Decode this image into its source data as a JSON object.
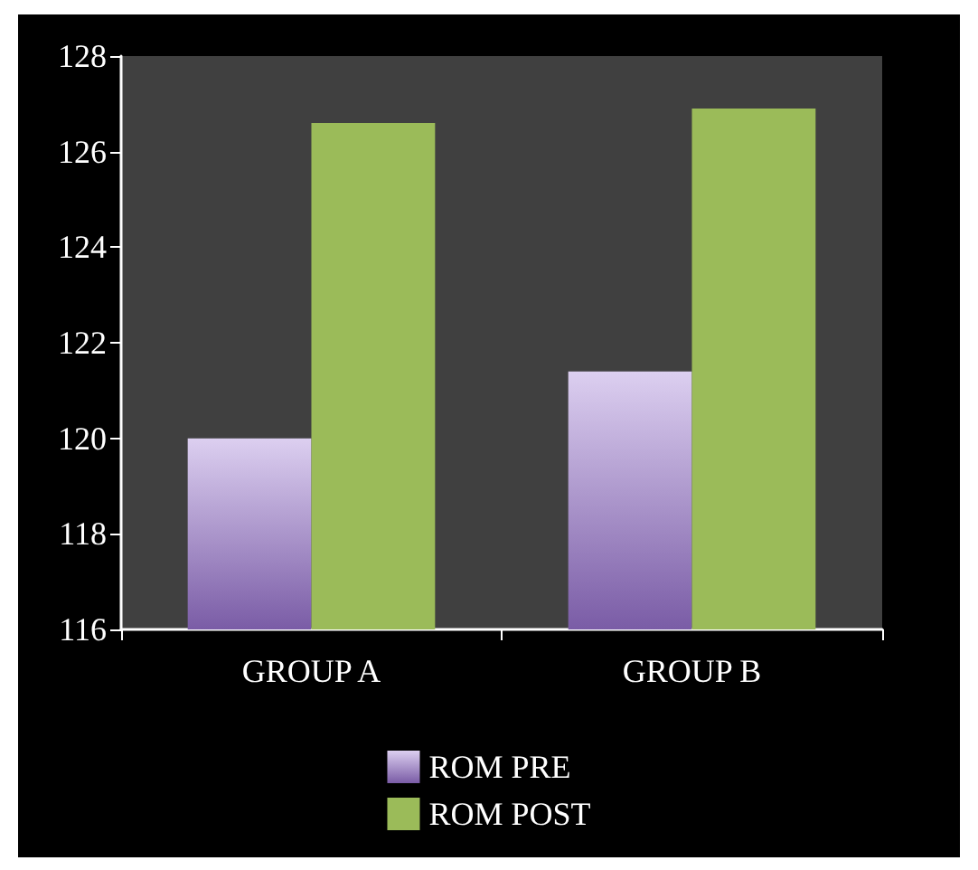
{
  "chart_data": {
    "type": "bar",
    "categories": [
      "GROUP A",
      "GROUP B"
    ],
    "series": [
      {
        "name": "ROM PRE",
        "color": "#7a5ca6",
        "values": [
          120.0,
          121.4
        ]
      },
      {
        "name": "ROM POST",
        "color": "#9bbb59",
        "values": [
          126.6,
          126.9
        ]
      }
    ],
    "ylim": [
      116,
      128
    ],
    "yticks": [
      116,
      118,
      120,
      122,
      124,
      126,
      128
    ],
    "grid": false,
    "legend": "bottom"
  }
}
